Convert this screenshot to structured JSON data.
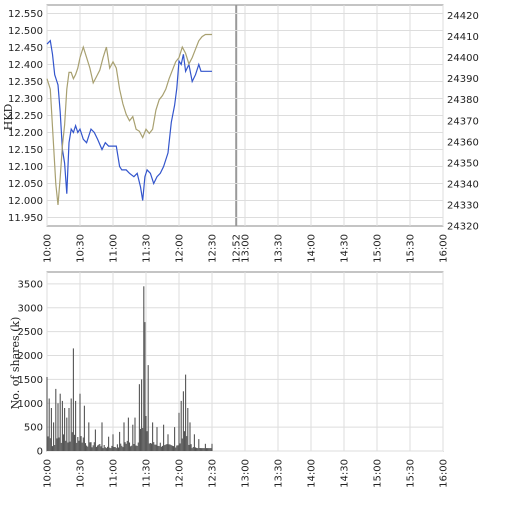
{
  "chart_data": [
    {
      "type": "line",
      "title": "",
      "xlabel": "",
      "ylabel": "HKD",
      "x_ticks": [
        "10:00",
        "10:30",
        "11:00",
        "11:30",
        "12:00",
        "12:30",
        "12:52",
        "13:00",
        "13:30",
        "14:00",
        "14:30",
        "15:00",
        "15:30",
        "16:00"
      ],
      "x_range": [
        "10:00",
        "16:00"
      ],
      "ylim": [
        11.925,
        12.575
      ],
      "y_ticks": [
        "11.950",
        "12.000",
        "12.050",
        "12.100",
        "12.150",
        "12.200",
        "12.250",
        "12.300",
        "12.350",
        "12.400",
        "12.450",
        "12.500",
        "12.550"
      ],
      "y2lim": [
        24320,
        24425
      ],
      "y2_ticks": [
        "24320",
        "24330",
        "24340",
        "24350",
        "24360",
        "24370",
        "24380",
        "24390",
        "24400",
        "24410",
        "24420"
      ],
      "current_time": "12:52",
      "grid": true,
      "series": [
        {
          "axis": "left",
          "color": "#3355cc",
          "points": [
            [
              "10:00",
              12.46
            ],
            [
              "10:03",
              12.47
            ],
            [
              "10:05",
              12.43
            ],
            [
              "10:07",
              12.37
            ],
            [
              "10:09",
              12.35
            ],
            [
              "10:10",
              12.34
            ],
            [
              "10:12",
              12.26
            ],
            [
              "10:14",
              12.15
            ],
            [
              "10:16",
              12.11
            ],
            [
              "10:18",
              12.02
            ],
            [
              "10:20",
              12.17
            ],
            [
              "10:22",
              12.21
            ],
            [
              "10:24",
              12.2
            ],
            [
              "10:26",
              12.22
            ],
            [
              "10:28",
              12.2
            ],
            [
              "10:30",
              12.21
            ],
            [
              "10:33",
              12.18
            ],
            [
              "10:36",
              12.17
            ],
            [
              "10:40",
              12.21
            ],
            [
              "10:43",
              12.2
            ],
            [
              "10:46",
              12.18
            ],
            [
              "10:50",
              12.15
            ],
            [
              "10:53",
              12.17
            ],
            [
              "10:56",
              12.16
            ],
            [
              "11:00",
              12.16
            ],
            [
              "11:03",
              12.16
            ],
            [
              "11:06",
              12.1
            ],
            [
              "11:08",
              12.09
            ],
            [
              "11:12",
              12.09
            ],
            [
              "11:15",
              12.08
            ],
            [
              "11:19",
              12.07
            ],
            [
              "11:22",
              12.08
            ],
            [
              "11:25",
              12.04
            ],
            [
              "11:27",
              12.0
            ],
            [
              "11:29",
              12.07
            ],
            [
              "11:31",
              12.09
            ],
            [
              "11:34",
              12.08
            ],
            [
              "11:37",
              12.05
            ],
            [
              "11:40",
              12.07
            ],
            [
              "11:43",
              12.08
            ],
            [
              "11:46",
              12.1
            ],
            [
              "11:50",
              12.14
            ],
            [
              "11:53",
              12.23
            ],
            [
              "11:56",
              12.28
            ],
            [
              "11:58",
              12.33
            ],
            [
              "12:00",
              12.41
            ],
            [
              "12:02",
              12.4
            ],
            [
              "12:04",
              12.43
            ],
            [
              "12:06",
              12.38
            ],
            [
              "12:09",
              12.4
            ],
            [
              "12:12",
              12.35
            ],
            [
              "12:15",
              12.37
            ],
            [
              "12:18",
              12.4
            ],
            [
              "12:20",
              12.38
            ],
            [
              "12:30",
              12.38
            ]
          ]
        },
        {
          "axis": "right",
          "color": "#a8a070",
          "points": [
            [
              "10:00",
              24390
            ],
            [
              "10:03",
              24385
            ],
            [
              "10:06",
              24358
            ],
            [
              "10:08",
              24340
            ],
            [
              "10:10",
              24330
            ],
            [
              "10:12",
              24343
            ],
            [
              "10:14",
              24358
            ],
            [
              "10:16",
              24368
            ],
            [
              "10:18",
              24385
            ],
            [
              "10:20",
              24393
            ],
            [
              "10:22",
              24393
            ],
            [
              "10:24",
              24390
            ],
            [
              "10:26",
              24392
            ],
            [
              "10:28",
              24395
            ],
            [
              "10:30",
              24400
            ],
            [
              "10:33",
              24405
            ],
            [
              "10:36",
              24400
            ],
            [
              "10:39",
              24395
            ],
            [
              "10:42",
              24388
            ],
            [
              "10:45",
              24391
            ],
            [
              "10:48",
              24394
            ],
            [
              "10:51",
              24400
            ],
            [
              "10:54",
              24405
            ],
            [
              "10:57",
              24395
            ],
            [
              "11:00",
              24398
            ],
            [
              "11:03",
              24395
            ],
            [
              "11:06",
              24385
            ],
            [
              "11:09",
              24378
            ],
            [
              "11:12",
              24373
            ],
            [
              "11:15",
              24370
            ],
            [
              "11:18",
              24372
            ],
            [
              "11:21",
              24366
            ],
            [
              "11:24",
              24365
            ],
            [
              "11:27",
              24362
            ],
            [
              "11:30",
              24366
            ],
            [
              "11:33",
              24364
            ],
            [
              "11:36",
              24366
            ],
            [
              "11:39",
              24375
            ],
            [
              "11:42",
              24380
            ],
            [
              "11:45",
              24382
            ],
            [
              "11:48",
              24385
            ],
            [
              "11:51",
              24390
            ],
            [
              "11:54",
              24394
            ],
            [
              "11:57",
              24398
            ],
            [
              "12:00",
              24400
            ],
            [
              "12:03",
              24405
            ],
            [
              "12:06",
              24402
            ],
            [
              "12:09",
              24397
            ],
            [
              "12:12",
              24400
            ],
            [
              "12:15",
              24404
            ],
            [
              "12:18",
              24408
            ],
            [
              "12:21",
              24410
            ],
            [
              "12:24",
              24411
            ],
            [
              "12:30",
              24411
            ]
          ]
        }
      ]
    },
    {
      "type": "bar",
      "title": "",
      "xlabel": "",
      "ylabel": "No. of shares (k)",
      "x_ticks": [
        "10:00",
        "10:30",
        "11:00",
        "11:30",
        "12:00",
        "12:30",
        "13:00",
        "13:30",
        "14:00",
        "14:30",
        "15:00",
        "15:30",
        "16:00"
      ],
      "x_range": [
        "10:00",
        "16:00"
      ],
      "ylim": [
        0,
        3750
      ],
      "y_ticks": [
        "0",
        "500",
        "1000",
        "1500",
        "2000",
        "2500",
        "3000",
        "3500"
      ],
      "grid": true,
      "bar_color": "#555555",
      "peaks": [
        [
          "10:00",
          1550
        ],
        [
          "10:02",
          1100
        ],
        [
          "10:04",
          900
        ],
        [
          "10:06",
          600
        ],
        [
          "10:08",
          1300
        ],
        [
          "10:10",
          1000
        ],
        [
          "10:12",
          1200
        ],
        [
          "10:14",
          1050
        ],
        [
          "10:16",
          900
        ],
        [
          "10:18",
          700
        ],
        [
          "10:20",
          900
        ],
        [
          "10:22",
          1100
        ],
        [
          "10:24",
          2150
        ],
        [
          "10:26",
          1050
        ],
        [
          "10:30",
          1200
        ],
        [
          "10:34",
          950
        ],
        [
          "10:38",
          600
        ],
        [
          "10:44",
          450
        ],
        [
          "10:50",
          600
        ],
        [
          "10:56",
          300
        ],
        [
          "11:00",
          350
        ],
        [
          "11:06",
          400
        ],
        [
          "11:10",
          600
        ],
        [
          "11:14",
          700
        ],
        [
          "11:18",
          550
        ],
        [
          "11:20",
          700
        ],
        [
          "11:24",
          1400
        ],
        [
          "11:26",
          1500
        ],
        [
          "11:28",
          3450
        ],
        [
          "11:29",
          2700
        ],
        [
          "11:32",
          1800
        ],
        [
          "11:36",
          600
        ],
        [
          "11:40",
          500
        ],
        [
          "11:46",
          550
        ],
        [
          "11:50",
          350
        ],
        [
          "11:56",
          500
        ],
        [
          "12:00",
          800
        ],
        [
          "12:02",
          1050
        ],
        [
          "12:04",
          1250
        ],
        [
          "12:06",
          1600
        ],
        [
          "12:08",
          900
        ],
        [
          "12:10",
          600
        ],
        [
          "12:14",
          350
        ],
        [
          "12:18",
          250
        ],
        [
          "12:24",
          150
        ],
        [
          "12:30",
          150
        ]
      ]
    }
  ]
}
